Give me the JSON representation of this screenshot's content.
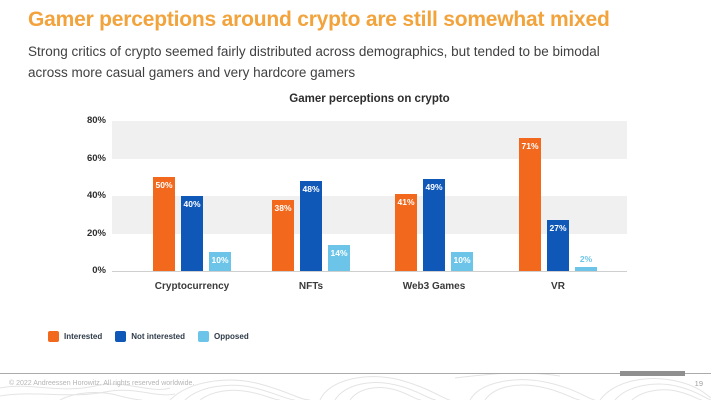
{
  "slide": {
    "title": "Gamer perceptions around crypto are still somewhat mixed",
    "subtitle": "Strong critics of crypto seemed fairly distributed across demographics, but tended to be bimodal across more casual gamers and very hardcore gamers"
  },
  "chart_data": {
    "type": "bar",
    "title": "Gamer perceptions on crypto",
    "categories": [
      "Cryptocurrency",
      "NFTs",
      "Web3 Games",
      "VR"
    ],
    "series": [
      {
        "name": "Interested",
        "color": "#F2691D",
        "values": [
          50,
          38,
          41,
          71
        ]
      },
      {
        "name": "Not interested",
        "color": "#1058B8",
        "values": [
          40,
          48,
          49,
          27
        ]
      },
      {
        "name": "Opposed",
        "color": "#6CC5E9",
        "values": [
          10,
          14,
          10,
          2
        ]
      }
    ],
    "value_label_format": "percent",
    "yticks": [
      "0%",
      "20%",
      "40%",
      "60%",
      "80%"
    ],
    "ylim": [
      0,
      80
    ],
    "grid": "alternating horizontal bands",
    "legend_position": "bottom-left"
  },
  "footer": {
    "copyright": "© 2022 Andreessen Horowitz. All rights reserved worldwide.",
    "page_number": "19"
  },
  "colors": {
    "title_accent": "#F2A33C",
    "subtitle_text": "#414042",
    "band_gray": "#f0f0f0",
    "footer_text": "#b5b5b5"
  }
}
